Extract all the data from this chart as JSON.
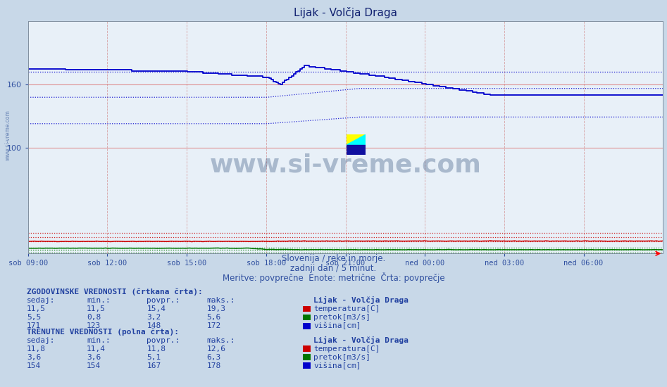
{
  "title": "Lijak - Volčja Draga",
  "subtitle1": "Slovenija / reke in morje.",
  "subtitle2": "zadnji dan / 5 minut.",
  "subtitle3": "Meritve: povprečne  Enote: metrične  Črta: povprečje",
  "xlabel_ticks": [
    "sob 09:00",
    "sob 12:00",
    "sob 15:00",
    "sob 18:00",
    "sob 21:00",
    "ned 00:00",
    "ned 03:00",
    "ned 06:00"
  ],
  "n_points": 288,
  "ymin": 0,
  "ymax": 220,
  "ytick_vals": [
    100,
    160
  ],
  "background_color": "#c8d8e8",
  "plot_bg_color": "#e8f0f8",
  "watermark": "www.si-vreme.com",
  "sidebar_text": "www.si-vreme.com",
  "legend_title": "Lijak - Volčja Draga",
  "hist_label": "ZGODOVINSKE VREDNOSTI (črtkana črta):",
  "curr_label": "TRENUTNE VREDNOSTI (polna črta):",
  "col_headers": [
    "sedaj:",
    "min.:",
    "povpr.:",
    "maks.:"
  ],
  "hist_rows": [
    {
      "sedaj": "11,5",
      "min": "11,5",
      "povpr": "15,4",
      "maks": "19,3",
      "color": "#cc0000",
      "label": "temperatura[C]"
    },
    {
      "sedaj": "5,5",
      "min": "0,8",
      "povpr": "3,2",
      "maks": "5,6",
      "color": "#007700",
      "label": "pretok[m3/s]"
    },
    {
      "sedaj": "171",
      "min": "123",
      "povpr": "148",
      "maks": "172",
      "color": "#0000cc",
      "label": "višina[cm]"
    }
  ],
  "curr_rows": [
    {
      "sedaj": "11,8",
      "min": "11,4",
      "povpr": "11,8",
      "maks": "12,6",
      "color": "#cc0000",
      "label": "temperatura[C]"
    },
    {
      "sedaj": "3,6",
      "min": "3,6",
      "povpr": "5,1",
      "maks": "6,3",
      "color": "#007700",
      "label": "pretok[m3/s]"
    },
    {
      "sedaj": "154",
      "min": "154",
      "povpr": "167",
      "maks": "178",
      "color": "#0000cc",
      "label": "višina[cm]"
    }
  ],
  "temp_color": "#cc0000",
  "flow_color": "#007700",
  "height_color": "#0000cc"
}
